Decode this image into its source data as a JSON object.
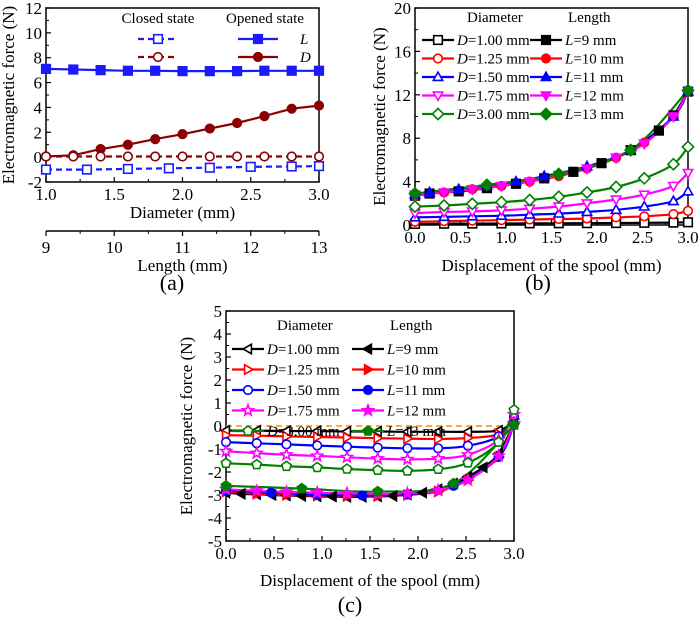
{
  "chart_data": [
    {
      "id": "a",
      "type": "line",
      "panel_label": "(a)",
      "xlabel": "Diameter (mm)",
      "x2label": "Length (mm)",
      "ylabel": "Electromagnetic force (N)",
      "xlim": [
        1.0,
        3.0
      ],
      "x2lim": [
        9,
        13
      ],
      "ylim": [
        -2,
        12
      ],
      "xticks": [
        "1.0",
        "1.5",
        "2.0",
        "2.5",
        "3.0"
      ],
      "x2ticks": [
        "9",
        "10",
        "11",
        "12",
        "13"
      ],
      "yticks": [
        "-2",
        "0",
        "2",
        "4",
        "6",
        "8",
        "10",
        "12"
      ],
      "legend": {
        "placement": "top-right",
        "headers": [
          "Closed state",
          "Opened state"
        ],
        "entries": [
          {
            "label": "",
            "group": "Closed state",
            "series": "closed-L"
          },
          {
            "label": "L",
            "group": "Opened state",
            "series": "opened-L"
          },
          {
            "label": "",
            "group": "Closed state",
            "series": "closed-D"
          },
          {
            "label": "D",
            "group": "Opened state",
            "series": "opened-D"
          }
        ]
      },
      "series": [
        {
          "name": "opened-L",
          "axis": "length",
          "color": "#1a1aff",
          "marker": "square-filled",
          "dash": false,
          "x": [
            9,
            9.4,
            9.8,
            10.2,
            10.6,
            11.0,
            11.4,
            11.8,
            12.2,
            12.6,
            13
          ],
          "y": [
            7.1,
            7.05,
            7.0,
            6.95,
            6.95,
            6.92,
            6.92,
            6.92,
            6.95,
            6.95,
            6.95
          ]
        },
        {
          "name": "opened-D",
          "axis": "diameter",
          "color": "#8b0000",
          "marker": "circle-filled",
          "dash": false,
          "x": [
            1.0,
            1.2,
            1.4,
            1.6,
            1.8,
            2.0,
            2.2,
            2.4,
            2.6,
            2.8,
            3.0
          ],
          "y": [
            0.05,
            0.15,
            0.65,
            1.0,
            1.45,
            1.85,
            2.3,
            2.75,
            3.3,
            3.9,
            4.15
          ]
        },
        {
          "name": "closed-D",
          "axis": "diameter",
          "color": "#8b0000",
          "marker": "circle-open",
          "dash": true,
          "x": [
            1.0,
            1.2,
            1.4,
            1.6,
            1.8,
            2.0,
            2.2,
            2.4,
            2.6,
            2.8,
            3.0
          ],
          "y": [
            0.05,
            0.05,
            0.05,
            0.05,
            0.05,
            0.05,
            0.05,
            0.05,
            0.05,
            0.05,
            0.05
          ]
        },
        {
          "name": "closed-L",
          "axis": "length",
          "color": "#1a1aff",
          "marker": "square-open",
          "dash": true,
          "x": [
            9,
            9.6,
            10.2,
            10.8,
            11.4,
            12.0,
            12.6,
            13
          ],
          "y": [
            -1.0,
            -1.0,
            -0.95,
            -0.9,
            -0.85,
            -0.78,
            -0.75,
            -0.72
          ]
        }
      ]
    },
    {
      "id": "b",
      "type": "line",
      "panel_label": "(b)",
      "xlabel": "Displacement of the spool (mm)",
      "ylabel": "Electromagnetic force (N)",
      "xlim": [
        0.0,
        3.0
      ],
      "ylim": [
        0,
        20
      ],
      "xticks": [
        "0.0",
        "0.5",
        "1.0",
        "1.5",
        "2.0",
        "2.5",
        "3.0"
      ],
      "yticks": [
        "0",
        "4",
        "8",
        "12",
        "16",
        "20"
      ],
      "legend": {
        "placement": "top",
        "headers": [
          "Diameter",
          "Length"
        ],
        "entries": [
          {
            "label": "D=1.00 mm",
            "prefix": "D",
            "rest": "=1.00 mm"
          },
          {
            "label": "L=9 mm",
            "prefix": "L",
            "rest": "=9 mm"
          },
          {
            "label": "D=1.25 mm",
            "prefix": "D",
            "rest": "=1.25 mm"
          },
          {
            "label": "L=10 mm",
            "prefix": "L",
            "rest": "=10 mm"
          },
          {
            "label": "D=1.50 mm",
            "prefix": "D",
            "rest": "=1.50 mm"
          },
          {
            "label": "L=11 mm",
            "prefix": "L",
            "rest": "=11 mm"
          },
          {
            "label": "D=1.75 mm",
            "prefix": "D",
            "rest": "=1.75 mm"
          },
          {
            "label": "L=12 mm",
            "prefix": "L",
            "rest": "=12 mm"
          },
          {
            "label": "D=3.00 mm",
            "prefix": "D",
            "rest": "=3.00 mm"
          },
          {
            "label": "L=13 mm",
            "prefix": "L",
            "rest": "=13 mm"
          }
        ]
      },
      "series": [
        {
          "name": "D=1.00 mm",
          "color": "#000000",
          "marker": "square-open",
          "x": [
            0,
            0.32,
            0.63,
            0.95,
            1.26,
            1.58,
            1.89,
            2.21,
            2.52,
            2.84,
            3.0
          ],
          "y": [
            0.1,
            0.12,
            0.13,
            0.14,
            0.15,
            0.16,
            0.17,
            0.18,
            0.2,
            0.22,
            0.25
          ]
        },
        {
          "name": "D=1.25 mm",
          "color": "#ff0000",
          "marker": "circle-open",
          "x": [
            0,
            0.32,
            0.63,
            0.95,
            1.26,
            1.58,
            1.89,
            2.21,
            2.52,
            2.84,
            3.0
          ],
          "y": [
            0.3,
            0.35,
            0.4,
            0.45,
            0.5,
            0.55,
            0.6,
            0.7,
            0.8,
            1.0,
            1.3
          ]
        },
        {
          "name": "D=1.50 mm",
          "color": "#0000ff",
          "marker": "triangle-up-open",
          "x": [
            0,
            0.32,
            0.63,
            0.95,
            1.26,
            1.58,
            1.89,
            2.21,
            2.52,
            2.84,
            3.0
          ],
          "y": [
            0.7,
            0.75,
            0.8,
            0.85,
            0.95,
            1.05,
            1.2,
            1.4,
            1.7,
            2.2,
            3.1
          ]
        },
        {
          "name": "D=1.75 mm",
          "color": "#ff00ff",
          "marker": "triangle-down-open",
          "x": [
            0,
            0.32,
            0.63,
            0.95,
            1.26,
            1.58,
            1.89,
            2.21,
            2.52,
            2.84,
            3.0
          ],
          "y": [
            1.1,
            1.2,
            1.25,
            1.35,
            1.5,
            1.7,
            2.0,
            2.35,
            2.8,
            3.6,
            4.8
          ]
        },
        {
          "name": "D=3.00 mm",
          "color": "#008000",
          "marker": "diamond-open",
          "x": [
            0,
            0.32,
            0.63,
            0.95,
            1.26,
            1.58,
            1.89,
            2.21,
            2.52,
            2.84,
            3.0
          ],
          "y": [
            1.7,
            1.8,
            1.95,
            2.1,
            2.3,
            2.6,
            3.0,
            3.5,
            4.3,
            5.6,
            7.2
          ]
        },
        {
          "name": "L=9 mm",
          "color": "#000000",
          "marker": "square-filled",
          "x": [
            0,
            0.16,
            0.48,
            0.79,
            1.11,
            1.42,
            1.74,
            2.05,
            2.37,
            2.68,
            2.84,
            3.0
          ],
          "y": [
            2.7,
            2.9,
            3.1,
            3.4,
            3.8,
            4.3,
            4.9,
            5.7,
            6.9,
            8.7,
            10.1,
            12.3
          ]
        },
        {
          "name": "L=10 mm",
          "color": "#ff0000",
          "marker": "circle-filled",
          "x": [
            0,
            0.32,
            0.63,
            0.95,
            1.26,
            1.58,
            1.89,
            2.21,
            2.52,
            2.84,
            3.0
          ],
          "y": [
            2.7,
            3.0,
            3.3,
            3.6,
            4.0,
            4.5,
            5.2,
            6.2,
            7.6,
            10.0,
            12.3
          ]
        },
        {
          "name": "L=11 mm",
          "color": "#0000ff",
          "marker": "triangle-up-filled",
          "x": [
            0,
            0.16,
            0.48,
            0.79,
            1.11,
            1.42,
            1.89,
            2.37,
            2.84,
            3.0
          ],
          "y": [
            2.8,
            3.0,
            3.3,
            3.6,
            4.0,
            4.5,
            5.4,
            6.9,
            10.0,
            12.3
          ]
        },
        {
          "name": "L=12 mm",
          "color": "#ff00ff",
          "marker": "triangle-down-filled",
          "x": [
            0,
            0.32,
            0.63,
            0.95,
            1.26,
            1.58,
            1.89,
            2.21,
            2.52,
            2.84,
            3.0
          ],
          "y": [
            2.8,
            3.0,
            3.3,
            3.6,
            4.0,
            4.6,
            5.2,
            6.2,
            7.5,
            10.0,
            12.3
          ]
        },
        {
          "name": "L=13 mm",
          "color": "#008000",
          "marker": "diamond-filled",
          "x": [
            0,
            0.79,
            1.58,
            2.37,
            3.0
          ],
          "y": [
            2.9,
            3.7,
            4.7,
            6.9,
            12.4
          ]
        }
      ]
    },
    {
      "id": "c",
      "type": "line",
      "panel_label": "(c)",
      "xlabel": "Displacement of the spool (mm)",
      "ylabel": "Electromagnetic force (N)",
      "xlim": [
        0.0,
        3.0
      ],
      "ylim": [
        -5,
        5
      ],
      "xticks": [
        "0.0",
        "0.5",
        "1.0",
        "1.5",
        "2.0",
        "2.5",
        "3.0"
      ],
      "yticks": [
        "-5",
        "-4",
        "-3",
        "-2",
        "-1",
        "0",
        "1",
        "2",
        "3",
        "4",
        "5"
      ],
      "reference_line": {
        "y": 0,
        "color": "#ff8c00",
        "dash": true
      },
      "legend": {
        "placement": "top",
        "headers": [
          "Diameter",
          "Length"
        ],
        "entries": [
          {
            "label": "D=1.00 mm",
            "prefix": "D",
            "rest": "=1.00 mm"
          },
          {
            "label": "L=9 mm",
            "prefix": "L",
            "rest": "=9 mm"
          },
          {
            "label": "D=1.25 mm",
            "prefix": "D",
            "rest": "=1.25 mm"
          },
          {
            "label": "L=10 mm",
            "prefix": "L",
            "rest": "=10 mm"
          },
          {
            "label": "D=1.50 mm",
            "prefix": "D",
            "rest": "=1.50 mm"
          },
          {
            "label": "L=11 mm",
            "prefix": "L",
            "rest": "=11 mm"
          },
          {
            "label": "D=1.75 mm",
            "prefix": "D",
            "rest": "=1.75 mm"
          },
          {
            "label": "L=12 mm",
            "prefix": "L",
            "rest": "=12 mm"
          },
          {
            "label": "D=3.00 mm",
            "prefix": "D",
            "rest": "=3.00 mm"
          },
          {
            "label": "L=13 mm",
            "prefix": "L",
            "rest": "=13 mm"
          }
        ]
      },
      "series": [
        {
          "name": "D=1.00 mm",
          "color": "#000000",
          "marker": "triangle-left-open",
          "x": [
            0,
            0.32,
            0.63,
            0.95,
            1.26,
            1.58,
            1.89,
            2.21,
            2.52,
            2.84,
            3.0
          ],
          "y": [
            -0.2,
            -0.2,
            -0.22,
            -0.22,
            -0.24,
            -0.24,
            -0.25,
            -0.25,
            -0.25,
            -0.2,
            0.2
          ]
        },
        {
          "name": "D=1.25 mm",
          "color": "#ff0000",
          "marker": "triangle-right-open",
          "x": [
            0,
            0.32,
            0.63,
            0.95,
            1.26,
            1.58,
            1.89,
            2.21,
            2.52,
            2.84,
            3.0
          ],
          "y": [
            -0.4,
            -0.42,
            -0.45,
            -0.48,
            -0.5,
            -0.53,
            -0.55,
            -0.56,
            -0.52,
            -0.35,
            0.3
          ]
        },
        {
          "name": "D=1.50 mm",
          "color": "#0000ff",
          "marker": "circle-open",
          "x": [
            0,
            0.32,
            0.63,
            0.95,
            1.26,
            1.58,
            1.89,
            2.21,
            2.52,
            2.84,
            3.0
          ],
          "y": [
            -0.7,
            -0.75,
            -0.8,
            -0.85,
            -0.9,
            -0.94,
            -0.97,
            -0.97,
            -0.86,
            -0.45,
            0.4
          ]
        },
        {
          "name": "D=1.75 mm",
          "color": "#ff00ff",
          "marker": "star-open",
          "x": [
            0,
            0.32,
            0.63,
            0.95,
            1.26,
            1.58,
            1.89,
            2.21,
            2.52,
            2.84,
            3.0
          ],
          "y": [
            -1.1,
            -1.18,
            -1.25,
            -1.3,
            -1.36,
            -1.42,
            -1.45,
            -1.42,
            -1.25,
            -0.6,
            0.5
          ]
        },
        {
          "name": "D=3.00 mm",
          "color": "#008000",
          "marker": "pentagon-open",
          "x": [
            0,
            0.32,
            0.63,
            0.95,
            1.26,
            1.58,
            1.89,
            2.21,
            2.52,
            2.84,
            3.0
          ],
          "y": [
            -1.62,
            -1.68,
            -1.75,
            -1.8,
            -1.87,
            -1.92,
            -1.95,
            -1.88,
            -1.6,
            -0.7,
            0.7
          ]
        },
        {
          "name": "L=9 mm",
          "color": "#000000",
          "marker": "triangle-left-filled",
          "x": [
            0,
            0.16,
            0.32,
            0.48,
            0.63,
            0.79,
            0.95,
            1.11,
            1.26,
            1.42,
            1.58,
            1.74,
            1.89,
            2.05,
            2.21,
            2.37,
            2.52,
            2.68,
            2.84,
            3.0
          ],
          "y": [
            -2.9,
            -2.95,
            -2.97,
            -3.0,
            -3.02,
            -3.04,
            -3.06,
            -3.07,
            -3.08,
            -3.08,
            -3.06,
            -3.04,
            -2.98,
            -2.9,
            -2.75,
            -2.5,
            -2.2,
            -1.8,
            -1.2,
            0.1
          ]
        },
        {
          "name": "L=10 mm",
          "color": "#ff0000",
          "marker": "triangle-right-filled",
          "x": [
            0,
            0.32,
            0.63,
            0.95,
            1.26,
            1.58,
            1.89,
            2.21,
            2.52,
            2.84,
            3.0
          ],
          "y": [
            -2.85,
            -2.95,
            -3.0,
            -3.03,
            -3.05,
            -3.05,
            -3.0,
            -2.85,
            -2.35,
            -1.35,
            0.1
          ]
        },
        {
          "name": "L=11 mm",
          "color": "#0000ff",
          "marker": "circle-filled",
          "x": [
            0,
            0.47,
            0.95,
            1.42,
            1.89,
            2.37,
            2.84,
            3.0
          ],
          "y": [
            -2.8,
            -2.9,
            -3.0,
            -3.02,
            -2.98,
            -2.6,
            -1.35,
            0.1
          ]
        },
        {
          "name": "L=12 mm",
          "color": "#ff00ff",
          "marker": "star-filled",
          "x": [
            0,
            0.32,
            0.63,
            0.95,
            1.26,
            1.58,
            1.89,
            2.21,
            2.52,
            2.84,
            3.0
          ],
          "y": [
            -2.75,
            -2.82,
            -2.87,
            -2.9,
            -2.93,
            -2.95,
            -2.93,
            -2.8,
            -2.35,
            -1.3,
            0.1
          ]
        },
        {
          "name": "L=13 mm",
          "color": "#008000",
          "marker": "pentagon-filled",
          "x": [
            0,
            0.79,
            1.58,
            2.37,
            3.0
          ],
          "y": [
            -2.6,
            -2.72,
            -2.85,
            -2.5,
            0.05
          ]
        }
      ]
    }
  ]
}
